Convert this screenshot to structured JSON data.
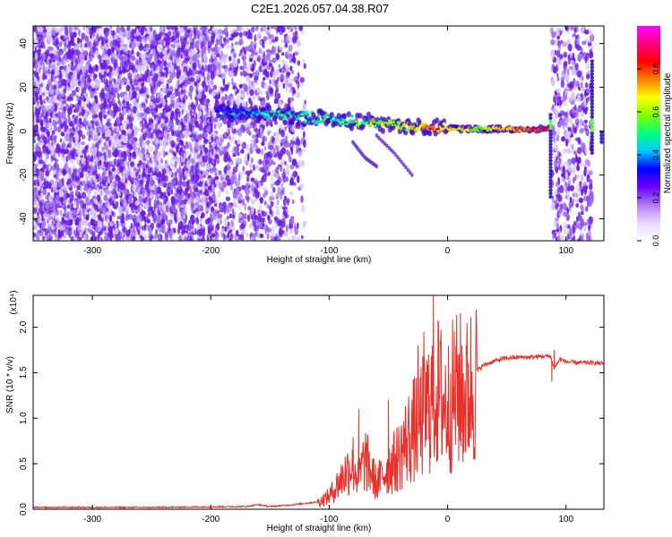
{
  "figure_title": "C2E1.2026.057.04.38.R07",
  "colors": {
    "snr_line": "#e8302a",
    "spec_background_dots": "#6a1fe0",
    "colorbar_stops": [
      "#ffffff",
      "#e8d8ff",
      "#b07af0",
      "#6a00ff",
      "#0000ff",
      "#00c8ff",
      "#00ff80",
      "#80ff00",
      "#ffff00",
      "#ff8000",
      "#ff0000",
      "#ff0080",
      "#ff00ff"
    ]
  },
  "chart_data": [
    {
      "type": "heatmap",
      "title": "",
      "xlabel": "Height of straight line (km)",
      "ylabel": "Frequency (Hz)",
      "xlim": [
        -350,
        132
      ],
      "ylim": [
        -50,
        48
      ],
      "x_ticks": [
        -300,
        -200,
        -100,
        0,
        100
      ],
      "x_tick_labels": [
        "-300",
        "-200",
        "-100",
        "0",
        "100"
      ],
      "y_ticks": [
        -40,
        -20,
        0,
        20,
        40
      ],
      "y_tick_labels": [
        "-40",
        "-20",
        "0",
        "20",
        "40"
      ],
      "colorbar": {
        "label": "Normalized spectral amplitude",
        "range": [
          0,
          1
        ],
        "ticks": [
          0.0,
          0.2,
          0.4,
          0.6,
          0.8
        ],
        "tick_labels": [
          "0.0",
          "0.2",
          "0.4",
          "0.6",
          "0.8"
        ]
      },
      "noise_regions": [
        {
          "x_from": -350,
          "x_to": -195,
          "density": "dense"
        },
        {
          "x_from": -195,
          "x_to": -130,
          "density": "medium"
        },
        {
          "x_from": -130,
          "x_to": -120,
          "density": "sparse"
        },
        {
          "x_from": 88,
          "x_to": 122,
          "density": "medium"
        }
      ],
      "signal_ridge": {
        "description": "main carrier trace, frequency (Hz) vs height (km)",
        "x": [
          -195,
          -170,
          -150,
          -130,
          -110,
          -90,
          -70,
          -50,
          -30,
          -10,
          10,
          30,
          50,
          70,
          86
        ],
        "y": [
          9,
          8,
          8,
          7,
          6,
          5,
          4,
          3,
          2,
          1.5,
          1,
          1,
          1,
          1,
          1
        ],
        "amplitude": [
          0.35,
          0.4,
          0.45,
          0.45,
          0.5,
          0.5,
          0.55,
          0.6,
          0.65,
          0.75,
          0.65,
          0.6,
          0.7,
          0.75,
          0.85
        ]
      },
      "side_traces": [
        {
          "x": [
            -60,
            -45,
            -30
          ],
          "y": [
            -2,
            -10,
            -20
          ]
        },
        {
          "x": [
            -80,
            -70,
            -60
          ],
          "y": [
            -5,
            -12,
            -16
          ]
        }
      ]
    },
    {
      "type": "line",
      "title": "",
      "xlabel": "Height of straight line (km)",
      "ylabel": "SNR (10 * v/v)",
      "scale_label": "(x10⁴)",
      "xlim": [
        -350,
        132
      ],
      "ylim": [
        0,
        2.35
      ],
      "x_ticks": [
        -300,
        -200,
        -100,
        0,
        100
      ],
      "x_tick_labels": [
        "-300",
        "-200",
        "-100",
        "0",
        "100"
      ],
      "y_ticks": [
        0.0,
        0.5,
        1.0,
        1.5,
        2.0
      ],
      "y_tick_labels": [
        "0.0",
        "0.5",
        "1.0",
        "1.5",
        "2.0"
      ],
      "series": [
        {
          "name": "SNR",
          "x": [
            -350,
            -250,
            -170,
            -160,
            -150,
            -130,
            -110,
            -100,
            -95,
            -90,
            -85,
            -80,
            -75,
            -70,
            -60,
            -50,
            -45,
            -40,
            -35,
            -30,
            -25,
            -20,
            -15,
            -10,
            -5,
            0,
            5,
            10,
            15,
            20,
            25,
            30,
            40,
            50,
            60,
            70,
            80,
            87,
            90,
            95,
            100,
            110,
            120,
            132
          ],
          "y": [
            0.02,
            0.02,
            0.03,
            0.05,
            0.03,
            0.05,
            0.08,
            0.15,
            0.25,
            0.35,
            0.45,
            0.55,
            0.35,
            0.6,
            0.3,
            0.5,
            0.55,
            0.65,
            0.8,
            0.9,
            1.0,
            1.1,
            1.25,
            1.4,
            1.3,
            1.2,
            1.35,
            1.4,
            1.3,
            1.45,
            1.52,
            1.58,
            1.63,
            1.66,
            1.67,
            1.67,
            1.68,
            1.68,
            1.55,
            1.65,
            1.62,
            1.61,
            1.61,
            1.6
          ]
        }
      ],
      "peak_annotations": [
        {
          "x": -12,
          "y": 2.35
        },
        {
          "x": -20,
          "y": 1.95
        },
        {
          "x": -25,
          "y": 1.8
        },
        {
          "x": 12,
          "y": 1.8
        },
        {
          "x": -50,
          "y": 1.2
        },
        {
          "x": -75,
          "y": 1.1
        },
        {
          "x": 90,
          "y": 1.75
        },
        {
          "x": 88,
          "y": 1.4
        }
      ]
    }
  ]
}
